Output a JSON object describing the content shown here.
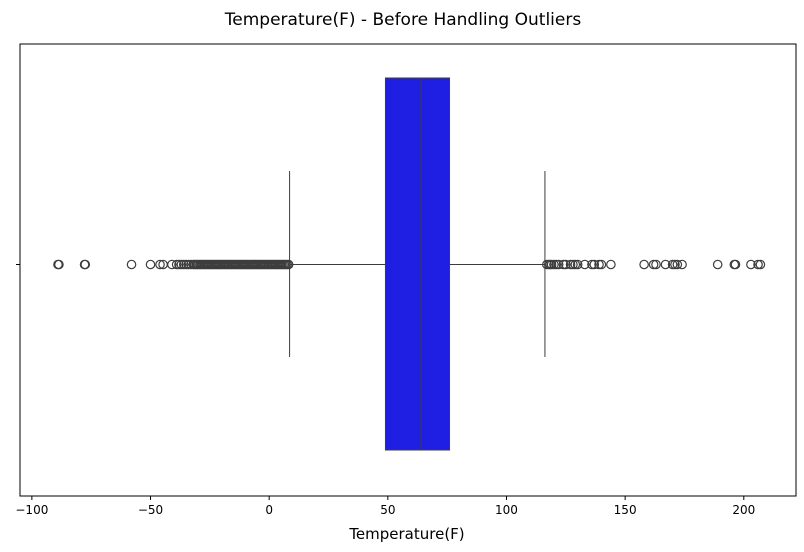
{
  "chart_data": {
    "type": "box",
    "title": "Temperature(F) - Before Handling Outliers",
    "xlabel": "Temperature(F)",
    "ylabel": "",
    "xlim": [
      -105,
      222
    ],
    "xticks": [
      -100,
      -50,
      0,
      50,
      100,
      150,
      200
    ],
    "xtick_labels": [
      "−100",
      "−50",
      "0",
      "50",
      "100",
      "150",
      "200"
    ],
    "box": {
      "q1": 49,
      "median": 64,
      "q3": 76,
      "whisker_low": 8.6,
      "whisker_high": 116.2,
      "fill_color": "#1f1fe3",
      "edge_color": "#3d3d3d"
    },
    "outliers_low": [
      -89.0,
      -88.6,
      -77.8,
      -77.5,
      -58.0,
      -50.0,
      -46.0,
      -44.7,
      -41.0,
      -39.0,
      -38.0,
      -37.0,
      -36.0,
      -35.0,
      -34.0,
      -33.0
    ],
    "outliers_low_dense_range": [
      -32,
      8.4
    ],
    "outliers_high": [
      117.0,
      117.8,
      118.4,
      119.0,
      120.0,
      121.0,
      122.0,
      124.0,
      125.0,
      127.0,
      128.0,
      129.0,
      130.0,
      133.0,
      136.0,
      137.0,
      139.0,
      140.0,
      144.0,
      158.0,
      162.0,
      163.0,
      167.0,
      170.0,
      171.0,
      172.0,
      174.0,
      189.0,
      196.0,
      196.5,
      203.0,
      206.0,
      207.0
    ],
    "grid": false
  }
}
